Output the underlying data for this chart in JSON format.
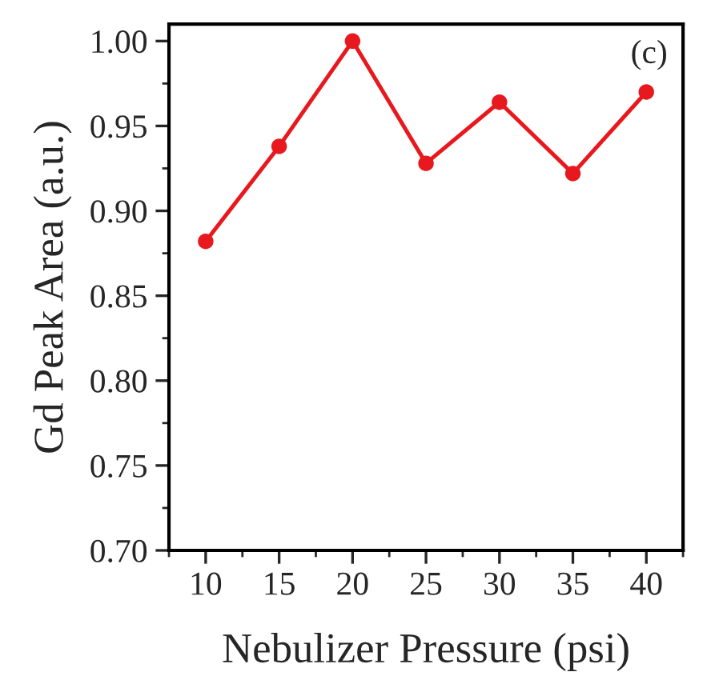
{
  "chart_data": {
    "type": "line",
    "xlabel": "Nebulizer Pressure (psi)",
    "ylabel": "Gd Peak Area (a.u.)",
    "x": [
      10,
      15,
      20,
      25,
      30,
      35,
      40
    ],
    "series": [
      {
        "color": "#e8191e",
        "values": [
          0.882,
          0.938,
          1.0,
          0.928,
          0.964,
          0.922,
          0.97
        ]
      }
    ],
    "xlim": [
      7.5,
      42.5
    ],
    "xticks": [
      10,
      15,
      20,
      25,
      30,
      35,
      40
    ],
    "ylim": [
      0.7,
      1.01
    ],
    "yticks": [
      {
        "value": 0.7,
        "label": "0.70"
      },
      {
        "value": 0.75,
        "label": "0.75"
      },
      {
        "value": 0.8,
        "label": "0.80"
      },
      {
        "value": 0.85,
        "label": "0.85"
      },
      {
        "value": 0.9,
        "label": "0.90"
      },
      {
        "value": 0.95,
        "label": "0.95"
      },
      {
        "value": 1.0,
        "label": "1.00"
      }
    ],
    "marker": "circle",
    "line_style": "solid",
    "grid": false,
    "legend": false,
    "annotations": [
      "(c)"
    ]
  }
}
